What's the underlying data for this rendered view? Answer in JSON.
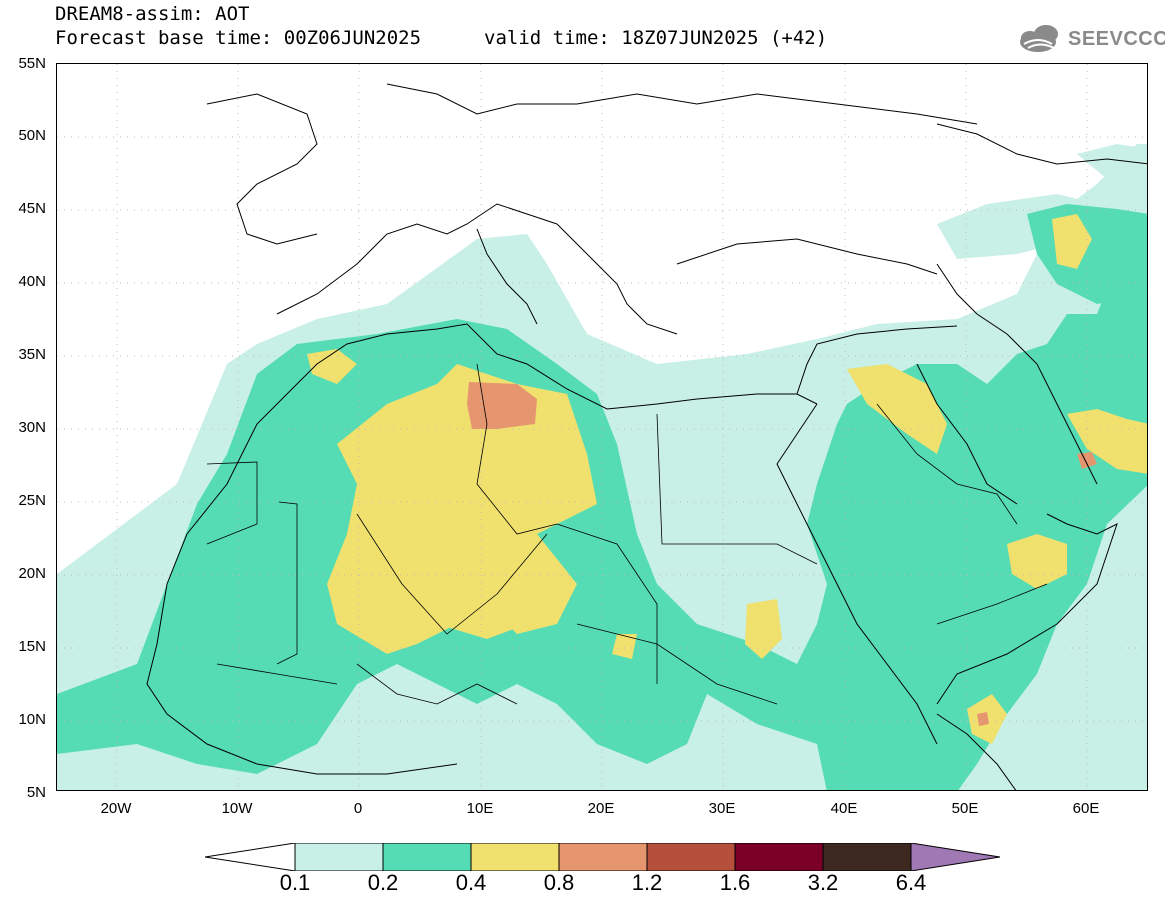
{
  "header": {
    "title": "DREAM8-assim: AOT",
    "base_time": "Forecast base time: 00Z06JUN2025",
    "valid_time": "valid time: 18Z07JUN2025 (+42)"
  },
  "logo": {
    "text": "SEEVCCC"
  },
  "map": {
    "region": "North Africa, Middle East and Southern Europe",
    "lat_labels": [
      "55N",
      "50N",
      "45N",
      "40N",
      "35N",
      "30N",
      "25N",
      "20N",
      "15N",
      "10N",
      "5N"
    ],
    "lon_labels": [
      "20W",
      "10W",
      "0",
      "10E",
      "20E",
      "30E",
      "40E",
      "50E",
      "60E"
    ],
    "lat_range": [
      5,
      55
    ],
    "lon_range": [
      -25,
      65
    ]
  },
  "colorbar": {
    "labels": [
      "0.1",
      "0.2",
      "0.4",
      "0.8",
      "1.2",
      "1.6",
      "3.2",
      "6.4"
    ],
    "colors": [
      "#c8f0e6",
      "#55dcb4",
      "#f0e06e",
      "#e6966e",
      "#b4503c",
      "#7a0028",
      "#3c281e"
    ],
    "under_color": "#ffffff",
    "over_color": "#a078b4"
  },
  "colors": {
    "aot_0_1": "#c8f0e6",
    "aot_0_2": "#55dcb4",
    "aot_0_4": "#f0e06e",
    "aot_0_8": "#e6966e",
    "coast": "#000000"
  }
}
